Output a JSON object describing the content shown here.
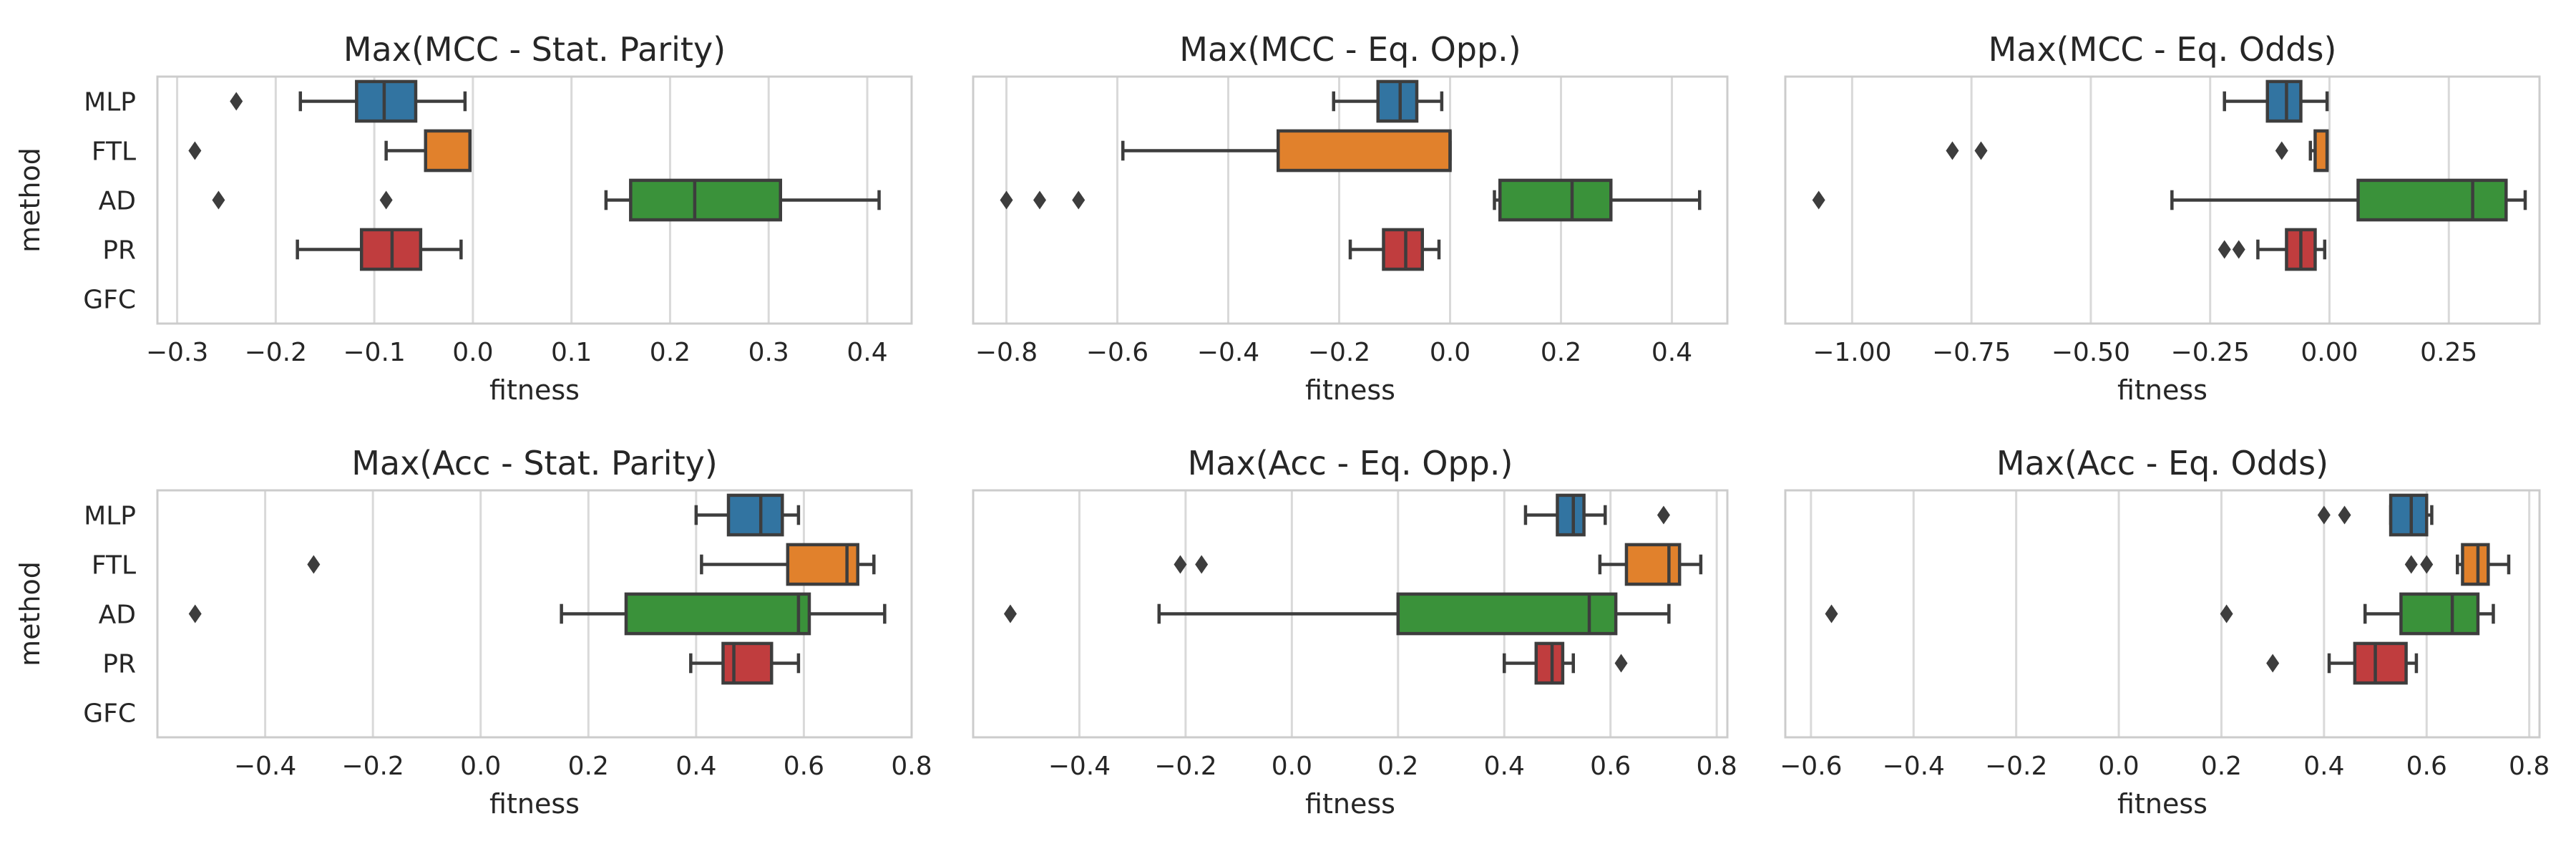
{
  "figure": {
    "colors": {
      "MLP": "#3274a1",
      "FTL": "#e1812c",
      "AD": "#3a923a",
      "PR": "#c03d3e",
      "GFC": "#8d6ab8"
    },
    "grid": true
  },
  "chart_data": [
    {
      "type": "box",
      "title": "Max(MCC - Stat. Parity)",
      "xlabel": "fitness",
      "ylabel": "method",
      "categories": [
        "MLP",
        "FTL",
        "AD",
        "PR",
        "GFC"
      ],
      "xlim": [
        -0.32,
        0.445
      ],
      "xticks": [
        -0.3,
        -0.2,
        -0.1,
        0.0,
        0.1,
        0.2,
        0.3,
        0.4
      ],
      "xtick_labels": [
        "−0.3",
        "−0.2",
        "−0.1",
        "0.0",
        "0.1",
        "0.2",
        "0.3",
        "0.4"
      ],
      "boxes": [
        {
          "method": "MLP",
          "whislo": -0.175,
          "q1": -0.118,
          "med": -0.09,
          "q3": -0.058,
          "whishi": -0.008,
          "fliers": [
            -0.24
          ]
        },
        {
          "method": "FTL",
          "whislo": -0.088,
          "q1": -0.048,
          "med": -0.003,
          "q3": -0.003,
          "whishi": -0.003,
          "fliers": [
            -0.282
          ]
        },
        {
          "method": "AD",
          "whislo": 0.135,
          "q1": 0.16,
          "med": 0.225,
          "q3": 0.312,
          "whishi": 0.412,
          "fliers": [
            -0.258,
            -0.088
          ]
        },
        {
          "method": "PR",
          "whislo": -0.178,
          "q1": -0.113,
          "med": -0.082,
          "q3": -0.053,
          "whishi": -0.012,
          "fliers": []
        },
        {
          "method": "GFC",
          "empty": true
        }
      ]
    },
    {
      "type": "box",
      "title": "Max(MCC - Eq. Opp.)",
      "xlabel": "fitness",
      "ylabel": "",
      "categories": [
        "MLP",
        "FTL",
        "AD",
        "PR",
        "GFC"
      ],
      "xlim": [
        -0.86,
        0.5
      ],
      "xticks": [
        -0.8,
        -0.6,
        -0.4,
        -0.2,
        0.0,
        0.2,
        0.4
      ],
      "xtick_labels": [
        "−0.8",
        "−0.6",
        "−0.4",
        "−0.2",
        "0.0",
        "0.2",
        "0.4"
      ],
      "boxes": [
        {
          "method": "MLP",
          "whislo": -0.21,
          "q1": -0.13,
          "med": -0.09,
          "q3": -0.06,
          "whishi": -0.015,
          "fliers": []
        },
        {
          "method": "FTL",
          "whislo": -0.59,
          "q1": -0.31,
          "med": 0.0,
          "q3": 0.0,
          "whishi": 0.0,
          "fliers": []
        },
        {
          "method": "AD",
          "whislo": 0.08,
          "q1": 0.09,
          "med": 0.22,
          "q3": 0.29,
          "whishi": 0.45,
          "fliers": [
            -0.8,
            -0.74,
            -0.67
          ]
        },
        {
          "method": "PR",
          "whislo": -0.18,
          "q1": -0.12,
          "med": -0.08,
          "q3": -0.05,
          "whishi": -0.02,
          "fliers": []
        },
        {
          "method": "GFC",
          "empty": true
        }
      ]
    },
    {
      "type": "box",
      "title": "Max(MCC - Eq. Odds)",
      "xlabel": "fitness",
      "ylabel": "",
      "categories": [
        "MLP",
        "FTL",
        "AD",
        "PR",
        "GFC"
      ],
      "xlim": [
        -1.14,
        0.44
      ],
      "xticks": [
        -1.0,
        -0.75,
        -0.5,
        -0.25,
        0.0,
        0.25
      ],
      "xtick_labels": [
        "−1.00",
        "−0.75",
        "−0.50",
        "−0.25",
        "0.00",
        "0.25"
      ],
      "boxes": [
        {
          "method": "MLP",
          "whislo": -0.22,
          "q1": -0.13,
          "med": -0.09,
          "q3": -0.06,
          "whishi": -0.005,
          "fliers": []
        },
        {
          "method": "FTL",
          "whislo": -0.04,
          "q1": -0.03,
          "med": -0.005,
          "q3": -0.005,
          "whishi": -0.005,
          "fliers": [
            -0.79,
            -0.73,
            -0.1
          ]
        },
        {
          "method": "AD",
          "whislo": -0.33,
          "q1": 0.06,
          "med": 0.3,
          "q3": 0.37,
          "whishi": 0.41,
          "fliers": [
            -1.07
          ]
        },
        {
          "method": "PR",
          "whislo": -0.15,
          "q1": -0.09,
          "med": -0.06,
          "q3": -0.03,
          "whishi": -0.01,
          "fliers": [
            -0.22,
            -0.19
          ]
        },
        {
          "method": "GFC",
          "empty": true
        }
      ]
    },
    {
      "type": "box",
      "title": "Max(Acc - Stat. Parity)",
      "xlabel": "fitness",
      "ylabel": "method",
      "categories": [
        "MLP",
        "FTL",
        "AD",
        "PR",
        "GFC"
      ],
      "xlim": [
        -0.6,
        0.8
      ],
      "xticks": [
        -0.4,
        -0.2,
        0.0,
        0.2,
        0.4,
        0.6,
        0.8
      ],
      "xtick_labels": [
        "−0.4",
        "−0.2",
        "0.0",
        "0.2",
        "0.4",
        "0.6",
        "0.8"
      ],
      "boxes": [
        {
          "method": "MLP",
          "whislo": 0.4,
          "q1": 0.46,
          "med": 0.52,
          "q3": 0.56,
          "whishi": 0.59,
          "fliers": []
        },
        {
          "method": "FTL",
          "whislo": 0.41,
          "q1": 0.57,
          "med": 0.68,
          "q3": 0.7,
          "whishi": 0.73,
          "fliers": [
            -0.31
          ]
        },
        {
          "method": "AD",
          "whislo": 0.15,
          "q1": 0.27,
          "med": 0.59,
          "q3": 0.61,
          "whishi": 0.75,
          "fliers": [
            -0.53
          ]
        },
        {
          "method": "PR",
          "whislo": 0.39,
          "q1": 0.45,
          "med": 0.47,
          "q3": 0.54,
          "whishi": 0.59,
          "fliers": []
        },
        {
          "method": "GFC",
          "empty": true
        }
      ]
    },
    {
      "type": "box",
      "title": "Max(Acc - Eq. Opp.)",
      "xlabel": "fitness",
      "ylabel": "",
      "categories": [
        "MLP",
        "FTL",
        "AD",
        "PR",
        "GFC"
      ],
      "xlim": [
        -0.6,
        0.82
      ],
      "xticks": [
        -0.4,
        -0.2,
        0.0,
        0.2,
        0.4,
        0.6,
        0.8
      ],
      "xtick_labels": [
        "−0.4",
        "−0.2",
        "0.0",
        "0.2",
        "0.4",
        "0.6",
        "0.8"
      ],
      "boxes": [
        {
          "method": "MLP",
          "whislo": 0.44,
          "q1": 0.5,
          "med": 0.53,
          "q3": 0.55,
          "whishi": 0.59,
          "fliers": [
            0.7
          ]
        },
        {
          "method": "FTL",
          "whislo": 0.58,
          "q1": 0.63,
          "med": 0.71,
          "q3": 0.73,
          "whishi": 0.77,
          "fliers": [
            -0.21,
            -0.17
          ]
        },
        {
          "method": "AD",
          "whislo": -0.25,
          "q1": 0.2,
          "med": 0.56,
          "q3": 0.61,
          "whishi": 0.71,
          "fliers": [
            -0.53
          ]
        },
        {
          "method": "PR",
          "whislo": 0.4,
          "q1": 0.46,
          "med": 0.49,
          "q3": 0.51,
          "whishi": 0.53,
          "fliers": [
            0.62
          ]
        },
        {
          "method": "GFC",
          "empty": true
        }
      ]
    },
    {
      "type": "box",
      "title": "Max(Acc - Eq. Odds)",
      "xlabel": "fitness",
      "ylabel": "",
      "categories": [
        "MLP",
        "FTL",
        "AD",
        "PR",
        "GFC"
      ],
      "xlim": [
        -0.65,
        0.82
      ],
      "xticks": [
        -0.6,
        -0.4,
        -0.2,
        0.0,
        0.2,
        0.4,
        0.6,
        0.8
      ],
      "xtick_labels": [
        "−0.6",
        "−0.4",
        "−0.2",
        "0.0",
        "0.2",
        "0.4",
        "0.6",
        "0.8"
      ],
      "boxes": [
        {
          "method": "MLP",
          "whislo": 0.53,
          "q1": 0.53,
          "med": 0.57,
          "q3": 0.6,
          "whishi": 0.61,
          "fliers": [
            0.4,
            0.44
          ]
        },
        {
          "method": "FTL",
          "whislo": 0.66,
          "q1": 0.67,
          "med": 0.7,
          "q3": 0.72,
          "whishi": 0.76,
          "fliers": [
            0.57,
            0.6
          ]
        },
        {
          "method": "AD",
          "whislo": 0.48,
          "q1": 0.55,
          "med": 0.65,
          "q3": 0.7,
          "whishi": 0.73,
          "fliers": [
            -0.56,
            0.21
          ]
        },
        {
          "method": "PR",
          "whislo": 0.41,
          "q1": 0.46,
          "med": 0.5,
          "q3": 0.56,
          "whishi": 0.58,
          "fliers": [
            0.3
          ]
        },
        {
          "method": "GFC",
          "empty": true
        }
      ]
    }
  ]
}
